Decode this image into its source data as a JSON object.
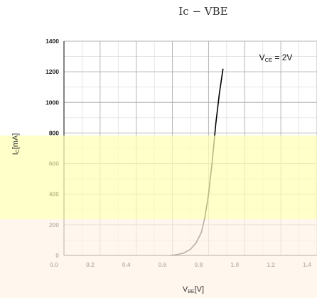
{
  "chart_data": {
    "type": "line",
    "title": "Ic − VBE",
    "xlabel": {
      "main": "V",
      "sub": "BE",
      "unit": "[V]"
    },
    "ylabel": {
      "main": "I",
      "sub": "C",
      "unit": "[mA]"
    },
    "xlim": [
      0,
      1.4
    ],
    "ylim": [
      0,
      1400
    ],
    "x_ticks": [
      0,
      0.2,
      0.4,
      0.6,
      0.8,
      1.0,
      1.2,
      1.4
    ],
    "x_tick_labels": [
      "0.0",
      "0.2",
      "0.4",
      "0.6",
      "0.8",
      "1.0",
      "1.2",
      "1.4"
    ],
    "y_ticks": [
      0,
      200,
      400,
      600,
      800,
      1000,
      1200,
      1400
    ],
    "y_tick_labels": [
      "0",
      "200",
      "400",
      "600",
      "800",
      "1000",
      "1200",
      "1400"
    ],
    "grid": true,
    "annotation": {
      "main": "V",
      "sub": "CE",
      "rest": " = 2V"
    },
    "series": [
      {
        "x": [
          0.59,
          0.62,
          0.66,
          0.7,
          0.73,
          0.76,
          0.78,
          0.8,
          0.82,
          0.84,
          0.86,
          0.88
        ],
        "y": [
          0,
          4,
          15,
          40,
          80,
          150,
          250,
          400,
          610,
          860,
          1060,
          1220
        ],
        "color": "#000000"
      }
    ]
  },
  "overlay_colors": {
    "upper_band": "#ffffb4",
    "lower_band": "#fff2e8"
  }
}
